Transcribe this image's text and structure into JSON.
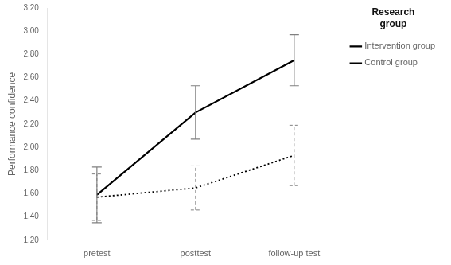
{
  "chart_data": {
    "type": "line",
    "categories": [
      "pretest",
      "posttest",
      "follow-up test"
    ],
    "series": [
      {
        "name": "Intervention group",
        "color": "#000000",
        "line_style": "solid",
        "values": [
          1.59,
          2.3,
          2.75
        ],
        "errors": [
          0.24,
          0.23,
          0.22
        ]
      },
      {
        "name": "Control group",
        "color": "#000000",
        "line_style": "dotted",
        "values": [
          1.57,
          1.65,
          1.93
        ],
        "errors": [
          0.2,
          0.19,
          0.26
        ]
      }
    ],
    "y_label": "Performance confidence",
    "legend_title": "Research\ngroup",
    "legend": "upper right",
    "ylim": [
      1.2,
      3.2
    ],
    "yticks": [
      {
        "value": 1.2,
        "label": "1.20"
      },
      {
        "value": 1.4,
        "label": "1.40"
      },
      {
        "value": 1.6,
        "label": "1.60"
      },
      {
        "value": 1.8,
        "label": "1.80"
      },
      {
        "value": 2.0,
        "label": "2.00"
      },
      {
        "value": 2.2,
        "label": "2.20"
      },
      {
        "value": 2.4,
        "label": "2.40"
      },
      {
        "value": 2.6,
        "label": "2.60"
      },
      {
        "value": 2.8,
        "label": "2.80"
      },
      {
        "value": 3.0,
        "label": "3.00"
      },
      {
        "value": 3.2,
        "label": "3.20"
      }
    ],
    "grid": false
  }
}
